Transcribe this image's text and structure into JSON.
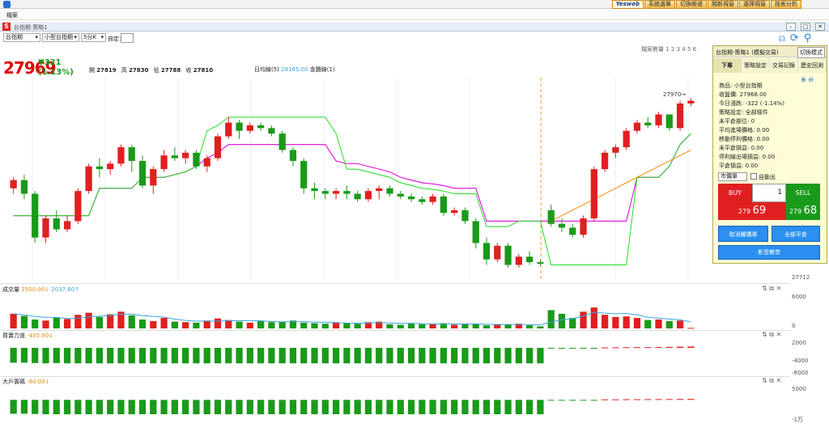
{
  "topbar": {
    "menu": [
      "系統選單",
      "切換帳號",
      "開新視窗",
      "選擇視窗",
      "技術分析"
    ],
    "logo": "Yesweb"
  },
  "menubar": {
    "label": "檔案"
  },
  "window": {
    "title": "台指期 策略1"
  },
  "toolbar": {
    "symbol": "台指期",
    "contract": "小型台指期",
    "period": "5分K",
    "custom_label": "自定:"
  },
  "quantity_label": "檔案數量 1 2 3 4 5 6",
  "quote": {
    "price": "27969",
    "change": "▼321",
    "change_pct": "(1.13%)",
    "open_label": "開",
    "open": "27819",
    "high_label": "高",
    "high": "27830",
    "low_label": "低",
    "low": "27788",
    "close_label": "收",
    "close": "27810",
    "ma_label": "日均線(5)",
    "ma_value": "28165.00",
    "bb_label": "金雞線(1)"
  },
  "price_axis": {
    "last": "27712",
    "marker": "27970→"
  },
  "panels": {
    "volume": {
      "label": "成交量",
      "v1": "2500.00↓",
      "v2": "2037.60↑",
      "axis": [
        "6000",
        "0"
      ]
    },
    "power": {
      "label": "買賣力道",
      "v": "-405.00↓",
      "axis": [
        "2000",
        "-4000",
        "-8000"
      ]
    },
    "big": {
      "label": "大戶籌碼",
      "v": "-80.00↓",
      "axis": [
        "5000",
        "-1万"
      ]
    }
  },
  "side": {
    "title": "台指期-策略1 (模擬交易)",
    "mode": "切換模式",
    "tabs": [
      "下單",
      "策略設定",
      "交易記錄",
      "歷史回測"
    ],
    "info": [
      "商品: 小型台指期",
      "收盤價: 27968.00",
      "今日漲跌: -322 (-1.14%)",
      "策略設定: 全部條件",
      "未平倉部位: 0",
      "平均進場價格: 0.00",
      "移動停利價格: 0.00",
      "未平倉損益: 0.00",
      "停利線出場損益: 0.00",
      "平倉損益: 0.00"
    ],
    "order_type": "市價單",
    "auto": "自動出",
    "buy": "BUY",
    "sell": "SELL",
    "qty": "1",
    "bid_pre": "279",
    "bid": "69",
    "ask_pre": "279",
    "ask": "68",
    "cancel": "取消觸價單",
    "close_all": "全部平倉",
    "video": "影音教學"
  },
  "chart_data": {
    "type": "candlestick",
    "candles": [
      [
        27880,
        27900,
        27870,
        27895
      ],
      [
        27895,
        27905,
        27860,
        27870
      ],
      [
        27870,
        27875,
        27780,
        27790
      ],
      [
        27790,
        27830,
        27780,
        27825
      ],
      [
        27825,
        27840,
        27800,
        27805
      ],
      [
        27805,
        27830,
        27800,
        27820
      ],
      [
        27820,
        27880,
        27815,
        27875
      ],
      [
        27875,
        27925,
        27870,
        27920
      ],
      [
        27920,
        27935,
        27900,
        27915
      ],
      [
        27915,
        27930,
        27905,
        27925
      ],
      [
        27925,
        27960,
        27920,
        27955
      ],
      [
        27955,
        27960,
        27910,
        27930
      ],
      [
        27930,
        27940,
        27880,
        27885
      ],
      [
        27885,
        27920,
        27870,
        27915
      ],
      [
        27915,
        27950,
        27910,
        27940
      ],
      [
        27940,
        27955,
        27930,
        27935
      ],
      [
        27935,
        27950,
        27925,
        27945
      ],
      [
        27945,
        27950,
        27915,
        27920
      ],
      [
        27920,
        27940,
        27910,
        27935
      ],
      [
        27935,
        27980,
        27930,
        27975
      ],
      [
        27975,
        28010,
        27970,
        28000
      ],
      [
        28000,
        28005,
        27970,
        27985
      ],
      [
        27985,
        28000,
        27980,
        27995
      ],
      [
        27995,
        28000,
        27985,
        27990
      ],
      [
        27990,
        27995,
        27975,
        27980
      ],
      [
        27980,
        27985,
        27945,
        27950
      ],
      [
        27950,
        27955,
        27920,
        27930
      ],
      [
        27930,
        27935,
        27870,
        27880
      ],
      [
        27880,
        27890,
        27860,
        27875
      ],
      [
        27875,
        27880,
        27860,
        27870
      ],
      [
        27870,
        27880,
        27860,
        27875
      ],
      [
        27875,
        27885,
        27860,
        27870
      ],
      [
        27870,
        27875,
        27855,
        27860
      ],
      [
        27860,
        27880,
        27855,
        27875
      ],
      [
        27875,
        27885,
        27860,
        27880
      ],
      [
        27880,
        27885,
        27865,
        27870
      ],
      [
        27870,
        27875,
        27860,
        27865
      ],
      [
        27865,
        27870,
        27855,
        27860
      ],
      [
        27860,
        27865,
        27850,
        27855
      ],
      [
        27855,
        27870,
        27850,
        27865
      ],
      [
        27865,
        27870,
        27830,
        27835
      ],
      [
        27835,
        27845,
        27830,
        27840
      ],
      [
        27840,
        27845,
        27815,
        27820
      ],
      [
        27820,
        27825,
        27770,
        27780
      ],
      [
        27780,
        27790,
        27740,
        27750
      ],
      [
        27750,
        27780,
        27745,
        27775
      ],
      [
        27775,
        27780,
        27735,
        27740
      ],
      [
        27740,
        27760,
        27735,
        27755
      ],
      [
        27755,
        27765,
        27740,
        27745
      ],
      [
        27745,
        27750,
        27738,
        27742
      ],
      [
        27840,
        27850,
        27810,
        27815
      ],
      [
        27815,
        27825,
        27800,
        27808
      ],
      [
        27808,
        27815,
        27790,
        27795
      ],
      [
        27795,
        27830,
        27790,
        27825
      ],
      [
        27825,
        27920,
        27820,
        27915
      ],
      [
        27915,
        27950,
        27910,
        27945
      ],
      [
        27945,
        27960,
        27935,
        27955
      ],
      [
        27955,
        27990,
        27950,
        27985
      ],
      [
        27985,
        28005,
        27980,
        28000
      ],
      [
        28000,
        28010,
        27990,
        27995
      ],
      [
        27995,
        28020,
        27990,
        28015
      ],
      [
        28015,
        28015,
        27985,
        27990
      ],
      [
        27990,
        28040,
        27985,
        28035
      ],
      [
        28035,
        28045,
        28030,
        28040
      ]
    ],
    "ma": [
      27830,
      27830,
      27830,
      27830,
      27830,
      27830,
      27830,
      27830,
      27880,
      27880,
      27880,
      27880,
      27900,
      27900,
      27900,
      27905,
      27910,
      27920,
      27935,
      27945,
      27960,
      27960,
      27960,
      27960,
      27960,
      27960,
      27960,
      27960,
      27960,
      27960,
      27930,
      27925,
      27925,
      27920,
      27915,
      27910,
      27900,
      27895,
      27890,
      27888,
      27885,
      27880,
      27880,
      27880,
      27820,
      27820,
      27820,
      27820,
      27820,
      27820,
      27820,
      27820,
      27820,
      27820,
      27820,
      27820,
      27820,
      27820,
      27900,
      27900,
      27900,
      27920,
      27960,
      27980
    ],
    "vol": [
      2800,
      2400,
      1700,
      1500,
      2100,
      1800,
      2600,
      3000,
      2200,
      2700,
      3200,
      2500,
      1700,
      1400,
      2000,
      1300,
      1200,
      1100,
      1500,
      1900,
      1600,
      1300,
      1100,
      1400,
      1200,
      1300,
      1500,
      1100,
      1000,
      900,
      1100,
      1000,
      900,
      1200,
      1300,
      800,
      700,
      900,
      800,
      900,
      1000,
      700,
      900,
      800,
      600,
      800,
      700,
      900,
      600,
      400,
      3500,
      2800,
      2000,
      3200,
      4000,
      2600,
      2200,
      2300,
      2000,
      1600,
      1700,
      1400,
      1500,
      100
    ],
    "power": [
      -4600,
      -4600,
      -4700,
      -4800,
      -4700,
      -4800,
      -4800,
      -4800,
      -4800,
      -4800,
      -4800,
      -4800,
      -4800,
      -4800,
      -4800,
      -4800,
      -4800,
      -4800,
      -4800,
      -4800,
      -4800,
      -4800,
      -4800,
      -4800,
      -4800,
      -4800,
      -4800,
      -4800,
      -4800,
      -4800,
      -4800,
      -4800,
      -4800,
      -4800,
      -4800,
      -4800,
      -4800,
      -4800,
      -4800,
      -4800,
      -4800,
      -4800,
      -4800,
      -4800,
      -4800,
      -4800,
      -4800,
      -4800,
      -4800,
      -4800,
      -150,
      -150,
      -200,
      -180,
      -100,
      120,
      150,
      180,
      200,
      220,
      250,
      300,
      350,
      400
    ],
    "big": [
      -5600,
      -5600,
      -5700,
      -5800,
      -5800,
      -5800,
      -5800,
      -5800,
      -5800,
      -5800,
      -5800,
      -5800,
      -5800,
      -5800,
      -5800,
      -5800,
      -5800,
      -5800,
      -5800,
      -5800,
      -5800,
      -5800,
      -5800,
      -5800,
      -5800,
      -5800,
      -5800,
      -5800,
      -5800,
      -5800,
      -5800,
      -5800,
      -5800,
      -5800,
      -5800,
      -5800,
      -5800,
      -5800,
      -5800,
      -5800,
      -5800,
      -5800,
      -5800,
      -5800,
      -5800,
      -5800,
      -5800,
      -5800,
      -5800,
      -5800,
      -100,
      -150,
      -150,
      -120,
      -100,
      200,
      200,
      250,
      250,
      280,
      300,
      320,
      350,
      380
    ]
  }
}
